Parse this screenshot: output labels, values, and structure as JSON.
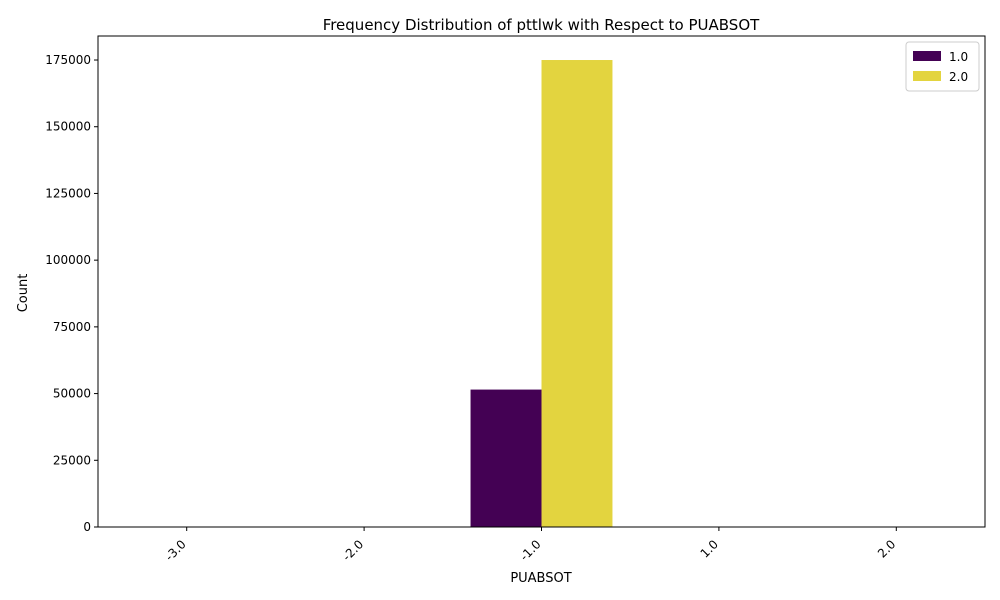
{
  "chart_data": {
    "type": "bar",
    "title": "Frequency Distribution of pttlwk with Respect to PUABSOT",
    "xlabel": "PUABSOT",
    "ylabel": "Count",
    "categories": [
      "-3.0",
      "-2.0",
      "-1.0",
      "1.0",
      "2.0"
    ],
    "series": [
      {
        "name": "1.0",
        "color": "#440154",
        "values": [
          0,
          0,
          51500,
          0,
          0
        ]
      },
      {
        "name": "2.0",
        "color": "#e3d43f",
        "values": [
          0,
          0,
          175000,
          0,
          0
        ]
      }
    ],
    "ylim": [
      0,
      184000
    ],
    "yticks": [
      0,
      25000,
      50000,
      75000,
      100000,
      125000,
      150000,
      175000
    ],
    "xtick_rotation": 45,
    "grid": false,
    "legend_position": "upper right"
  }
}
